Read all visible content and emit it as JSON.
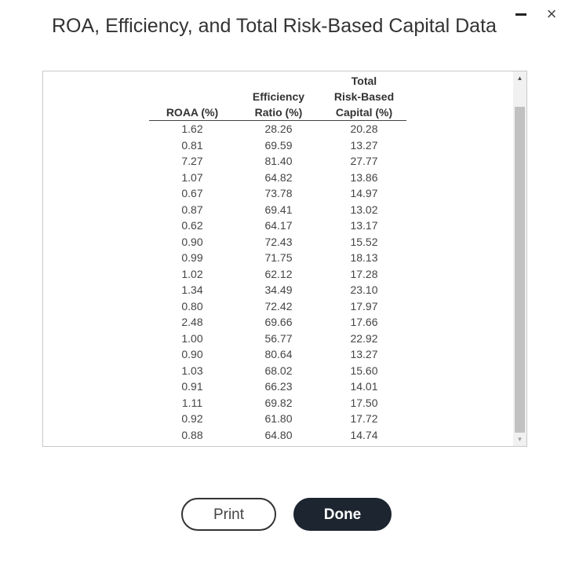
{
  "dialog": {
    "title": "ROA, Efficiency, and Total Risk-Based Capital Data",
    "minimize_icon": "minimize-icon",
    "close_label": "×"
  },
  "table": {
    "headers": [
      [
        "ROAA (%)"
      ],
      [
        "Efficiency",
        "Ratio (%)"
      ],
      [
        "Total",
        "Risk-Based",
        "Capital (%)"
      ]
    ],
    "rows": [
      [
        "1.62",
        "28.26",
        "20.28"
      ],
      [
        "0.81",
        "69.59",
        "13.27"
      ],
      [
        "7.27",
        "81.40",
        "27.77"
      ],
      [
        "1.07",
        "64.82",
        "13.86"
      ],
      [
        "0.67",
        "73.78",
        "14.97"
      ],
      [
        "0.87",
        "69.41",
        "13.02"
      ],
      [
        "0.62",
        "64.17",
        "13.17"
      ],
      [
        "0.90",
        "72.43",
        "15.52"
      ],
      [
        "0.99",
        "71.75",
        "18.13"
      ],
      [
        "1.02",
        "62.12",
        "17.28"
      ],
      [
        "1.34",
        "34.49",
        "23.10"
      ],
      [
        "0.80",
        "72.42",
        "17.97"
      ],
      [
        "2.48",
        "69.66",
        "17.66"
      ],
      [
        "1.00",
        "56.77",
        "22.92"
      ],
      [
        "0.90",
        "80.64",
        "13.27"
      ],
      [
        "1.03",
        "68.02",
        "15.60"
      ],
      [
        "0.91",
        "66.23",
        "14.01"
      ],
      [
        "1.11",
        "69.82",
        "17.50"
      ],
      [
        "0.92",
        "61.80",
        "17.72"
      ],
      [
        "0.88",
        "64.80",
        "14.74"
      ]
    ]
  },
  "scrollbar": {
    "up_arrow": "▲",
    "down_arrow": "▼"
  },
  "buttons": {
    "print_label": "Print",
    "done_label": "Done"
  }
}
